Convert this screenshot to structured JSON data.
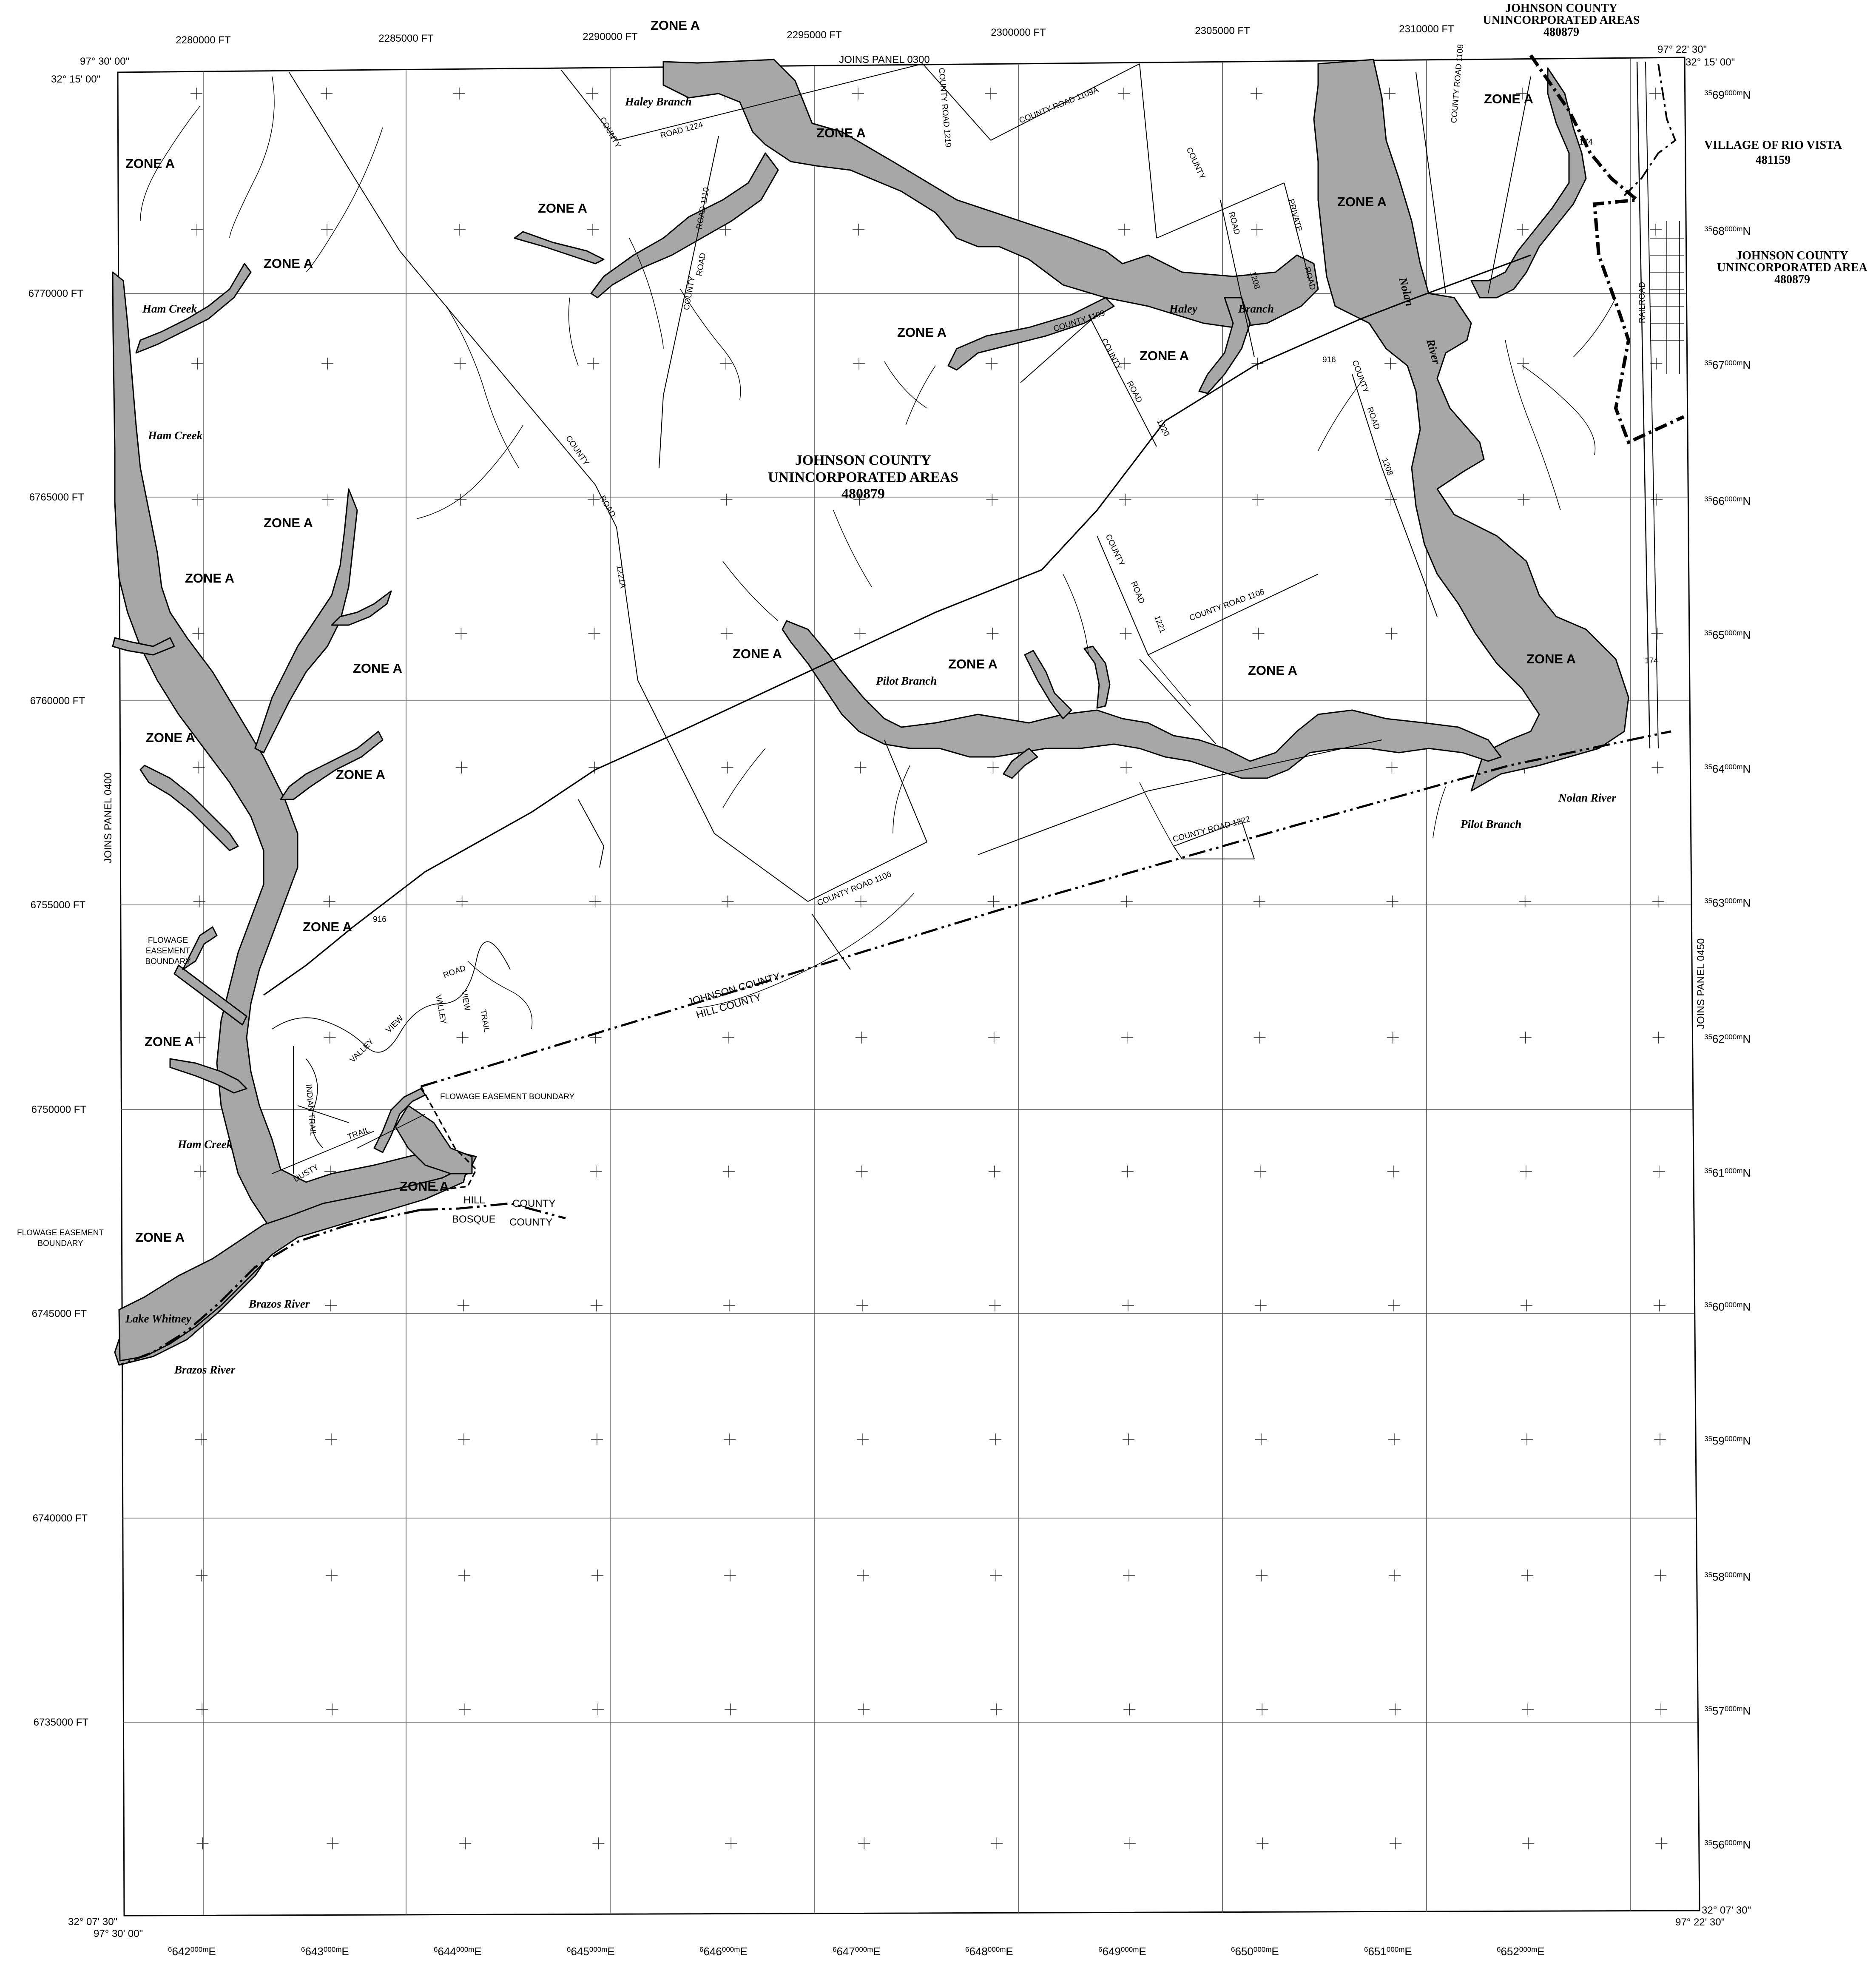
{
  "colors": {
    "flood": "#a7a7a7",
    "ink": "#000000",
    "grid": "#555555",
    "paper": "#ffffff"
  },
  "grid_top": [
    "2280000 FT",
    "2285000 FT",
    "2290000 FT",
    "2295000 FT",
    "2300000 FT",
    "2305000 FT",
    "2310000 FT"
  ],
  "grid_left": [
    "6770000 FT",
    "6765000 FT",
    "6760000 FT",
    "6755000 FT",
    "6750000 FT",
    "6745000 FT",
    "6740000 FT",
    "6735000 FT"
  ],
  "utm_east": [
    "642",
    "643",
    "644",
    "645",
    "646",
    "647",
    "648",
    "649",
    "650",
    "651",
    "652"
  ],
  "utm_east_sup": "6",
  "utm_east_mid": "000m",
  "utm_east_suffix": "E",
  "utm_north": [
    "69",
    "68",
    "67",
    "66",
    "65",
    "64",
    "63",
    "62",
    "61",
    "60",
    "59",
    "58",
    "57",
    "56"
  ],
  "utm_north_sup": "35",
  "utm_north_mid": "000m",
  "utm_north_suffix": "N",
  "corners": {
    "nw_lon": "97° 30' 00\"",
    "nw_lat": "32° 15' 00\"",
    "ne_lon": "97° 22' 30\"",
    "ne_lat": "32° 15' 00\"",
    "sw_lat": "32° 07' 30\"",
    "sw_lon": "97° 30' 00\"",
    "se_lat": "32° 07' 30\"",
    "se_lon": "97° 22' 30\""
  },
  "joins": {
    "top": "JOINS PANEL 0300",
    "left": "JOINS PANEL 0400",
    "right": "JOINS PANEL 0450"
  },
  "communities": {
    "main_name_1": "JOHNSON COUNTY",
    "main_name_2": "UNINCORPORATED AREAS",
    "main_id": "480879",
    "ne_name_1": "JOHNSON COUNTY",
    "ne_name_2": "UNINCORPORATED AREAS",
    "ne_id": "480879",
    "rio_name": "VILLAGE OF RIO VISTA",
    "rio_id": "481159",
    "e_name_1": "JOHNSON COUNTY",
    "e_name_2": "UNINCORPORATED AREA",
    "e_id": "480879"
  },
  "zone_label": "ZONE A",
  "creeks": {
    "haley": "Haley Branch",
    "ham": "Ham Creek",
    "pilot": "Pilot Branch",
    "nolan": "Nolan River",
    "nolan_a": "Nolan",
    "nolan_b": "River",
    "haley_a": "Haley",
    "haley_b": "Branch",
    "brazos": "Brazos River",
    "whitney": "Lake Whitney"
  },
  "roads": {
    "cr_1224": "ROAD  1224",
    "cr_1219": "COUNTY ROAD 1219",
    "cr_1109a": "COUNTY   ROAD   1109A",
    "county": "COUNTY",
    "road": "ROAD",
    "cr_1110": "ROAD  1110",
    "cr_1109": "COUNTY   1109",
    "cr_1221a": "1221A",
    "cr_1220": "1220",
    "cr_1221": "1221",
    "cr_1106": "COUNTY   ROAD   1106",
    "cr_1106b": "COUNTY   ROAD   1106",
    "cr_1222": "COUNTY ROAD 1222",
    "cr_1208": "1208",
    "cr_1108": "COUNTY ROAD 1108",
    "private": "PRIVATE",
    "railroad": "RAILROAD",
    "valley": "VALLEY",
    "view": "VIEW",
    "trail": "TRAIL",
    "indian_trail": "INDIAN TRAIL",
    "dusty": "DUSTY",
    "sh916": "916",
    "sh174": "174"
  },
  "boundaries": {
    "flowage": "FLOWAGE EASEMENT BOUNDARY",
    "flowage_1": "FLOWAGE",
    "flowage_2": "EASEMENT",
    "flowage_3": "BOUNDARY",
    "flowage_b1": "FLOWAGE EASEMENT",
    "flowage_b2": "BOUNDARY",
    "johnson": "JOHNSON COUNTY",
    "hill": "HILL COUNTY",
    "hill_w": "HILL",
    "county_w": "COUNTY",
    "bosque_w": "BOSQUE",
    "county_w2": "COUNTY"
  }
}
